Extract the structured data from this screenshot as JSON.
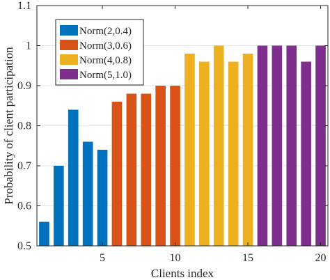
{
  "chart_data": {
    "type": "bar",
    "title": "",
    "xlabel": "Clients index",
    "ylabel": "Probability of client participation",
    "xlim": [
      0.5,
      20.5
    ],
    "ylim": [
      0.5,
      1.1
    ],
    "xticks": [
      5,
      10,
      15,
      20
    ],
    "yticks": [
      0.5,
      0.6,
      0.7,
      0.8,
      0.9,
      1,
      1.1
    ],
    "ytick_labels": [
      "0.5",
      "0.6",
      "0.7",
      "0.8",
      "0.9",
      "1",
      "1.1"
    ],
    "grid": "horizontal",
    "legend_position": "top-left",
    "series": [
      {
        "name": "Norm(2,0.4)",
        "color": "#0072BD",
        "x": [
          1,
          2,
          3,
          4,
          5
        ],
        "values": [
          0.56,
          0.7,
          0.84,
          0.76,
          0.74
        ]
      },
      {
        "name": "Norm(3,0.6)",
        "color": "#D95319",
        "x": [
          6,
          7,
          8,
          9,
          10
        ],
        "values": [
          0.86,
          0.88,
          0.88,
          0.9,
          0.9
        ]
      },
      {
        "name": "Norm(4,0.8)",
        "color": "#EDB120",
        "x": [
          11,
          12,
          13,
          14,
          15
        ],
        "values": [
          0.98,
          0.96,
          1.0,
          0.96,
          0.98
        ]
      },
      {
        "name": "Norm(5,1.0)",
        "color": "#7E2F8E",
        "x": [
          16,
          17,
          18,
          19,
          20
        ],
        "values": [
          1.0,
          1.0,
          1.0,
          0.96,
          1.0
        ]
      }
    ]
  }
}
